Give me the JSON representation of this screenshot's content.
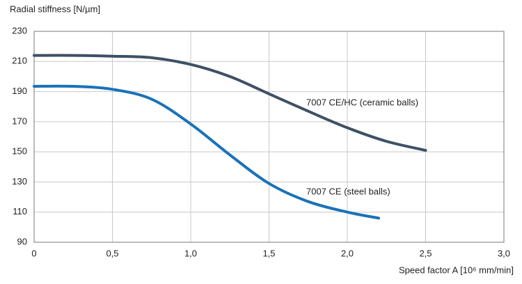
{
  "chart_data": {
    "type": "line",
    "y_label": "Radial stiffness [N/µm]",
    "x_label": "Speed factor A [10⁶ mm/min]",
    "xlim": [
      0,
      3.0
    ],
    "xticks": [
      0,
      {
        "value": 0.5,
        "label": "0,5"
      },
      {
        "value": 1.0,
        "label": "1,0"
      },
      {
        "value": 1.5,
        "label": "1,5"
      },
      {
        "value": 2.0,
        "label": "2,0"
      },
      {
        "value": 2.5,
        "label": "2,5"
      },
      {
        "value": 3.0,
        "label": "3,0"
      }
    ],
    "ylim": [
      90,
      230
    ],
    "yticks": [
      90,
      110,
      130,
      150,
      170,
      190,
      210,
      230
    ],
    "grid": true,
    "series": [
      {
        "name": "7007 CE/HC (ceramic balls)",
        "color": "#3e5064",
        "x": [
          0,
          0.25,
          0.5,
          0.75,
          1.0,
          1.25,
          1.5,
          1.75,
          2.0,
          2.25,
          2.5
        ],
        "values": [
          214,
          214,
          213.5,
          212.5,
          208,
          200,
          188.5,
          177,
          166,
          157,
          151
        ]
      },
      {
        "name": "7007 CE (steel balls)",
        "color": "#1a72b8",
        "x": [
          0,
          0.25,
          0.5,
          0.75,
          1.0,
          1.25,
          1.5,
          1.75,
          2.0,
          2.2
        ],
        "values": [
          193.5,
          193.5,
          191.5,
          185,
          168.5,
          148,
          129,
          117,
          110,
          106
        ]
      }
    ]
  }
}
